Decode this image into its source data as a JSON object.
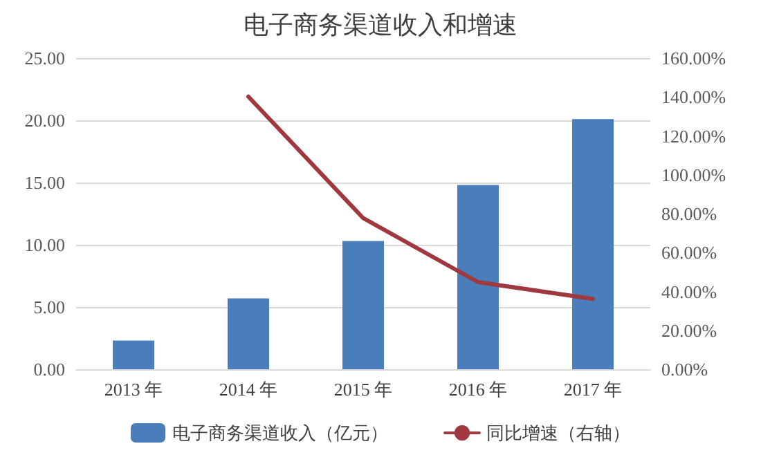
{
  "chart_data": {
    "type": "bar",
    "title": "电子商务渠道收入和增速",
    "categories": [
      "2013 年",
      "2014 年",
      "2015 年",
      "2016 年",
      "2017 年"
    ],
    "series": [
      {
        "name": "电子商务渠道收入（亿元）",
        "color": "#4a7ebb",
        "values": [
          2.3,
          5.7,
          10.3,
          14.8,
          20.1
        ]
      },
      {
        "name": "同比增速（右轴）",
        "type": "line",
        "axis": "y2",
        "color": "#a0393f",
        "values": [
          null,
          140.2,
          77.7,
          44.8,
          36.2
        ]
      }
    ],
    "ylim": [
      0,
      25
    ],
    "yticks": [
      {
        "value": 0,
        "label": "0.00"
      },
      {
        "value": 5,
        "label": "5.00"
      },
      {
        "value": 10,
        "label": "10.00"
      },
      {
        "value": 15,
        "label": "15.00"
      },
      {
        "value": 20,
        "label": "20.00"
      },
      {
        "value": 25,
        "label": "25.00"
      }
    ],
    "y2lim": [
      0,
      160
    ],
    "y2ticks": [
      {
        "value": 0,
        "label": "0.00%"
      },
      {
        "value": 20,
        "label": "20.00%"
      },
      {
        "value": 40,
        "label": "40.00%"
      },
      {
        "value": 60,
        "label": "60.00%"
      },
      {
        "value": 80,
        "label": "80.00%"
      },
      {
        "value": 100,
        "label": "100.00%"
      },
      {
        "value": 120,
        "label": "120.00%"
      },
      {
        "value": 140,
        "label": "140.00%"
      },
      {
        "value": 160,
        "label": "160.00%"
      }
    ],
    "grid": "y",
    "legend": "bottom",
    "marker": "none",
    "line_style": "solid"
  }
}
